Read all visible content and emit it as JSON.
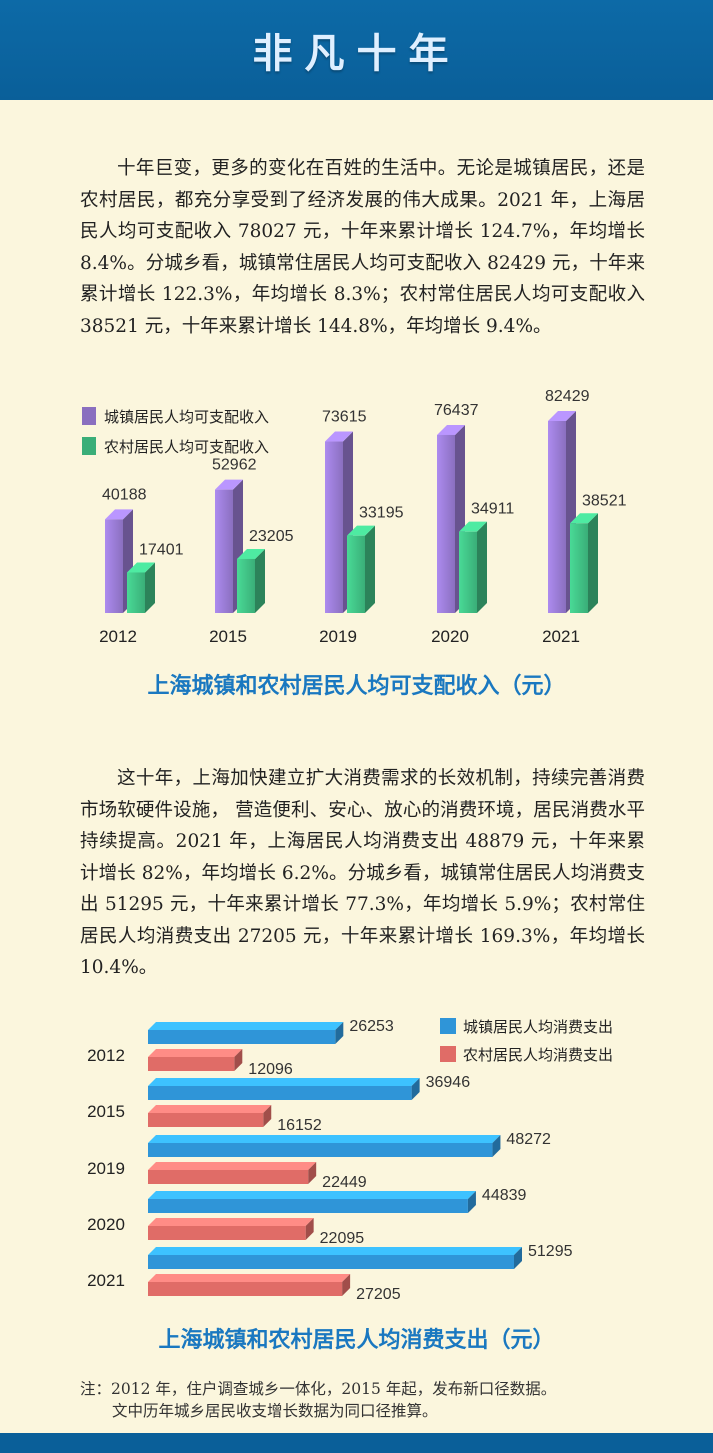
{
  "header": {
    "title": "非凡十年"
  },
  "paragraph1": "十年巨变，更多的变化在百姓的生活中。无论是城镇居民，还是农村居民，都充分享受到了经济发展的伟大成果。2021 年，上海居民人均可支配收入 78027 元，十年来累计增长 124.7%，年均增长 8.4%。分城乡看，城镇常住居民人均可支配收入 82429 元，十年来累计增长 122.3%，年均增长 8.3%；农村常住居民人均可支配收入 38521 元，十年来累计增长 144.8%，年均增长 9.4%。",
  "paragraph2": "这十年，上海加快建立扩大消费需求的长效机制，持续完善消费市场软硬件设施， 营造便利、安心、放心的消费环境，居民消费水平持续提高。2021 年，上海居民人均消费支出 48879 元，十年来累计增长 82%，年均增长 6.2%。分城乡看，城镇常住居民人均消费支出 51295 元，十年来累计增长 77.3%，年均增长 5.9%；农村常住居民人均消费支出 27205 元，十年来累计增长 169.3%，年均增长 10.4%。",
  "chart_data": [
    {
      "type": "bar",
      "title": "上海城镇和农村居民人均可支配收入（元）",
      "categories": [
        "2012",
        "2015",
        "2019",
        "2020",
        "2021"
      ],
      "series": [
        {
          "name": "城镇居民人均可支配收入",
          "values": [
            40188,
            52962,
            73615,
            76437,
            82429
          ]
        },
        {
          "name": "农村居民人均可支配收入",
          "values": [
            17401,
            23205,
            33195,
            34911,
            38521
          ]
        }
      ],
      "legend": "top-left",
      "colors": [
        "#8a6fbf",
        "#3aae78"
      ]
    },
    {
      "type": "bar",
      "orientation": "horizontal",
      "title": "上海城镇和农村居民人均消费支出（元）",
      "categories": [
        "2012",
        "2015",
        "2019",
        "2020",
        "2021"
      ],
      "series": [
        {
          "name": "城镇居民人均消费支出",
          "values": [
            26253,
            36946,
            48272,
            44839,
            51295
          ]
        },
        {
          "name": "农村居民人均消费支出",
          "values": [
            12096,
            16152,
            22449,
            22095,
            27205
          ]
        }
      ],
      "legend": "top-right",
      "colors": [
        "#2f95d8",
        "#e06c67"
      ]
    }
  ],
  "note": {
    "line1": "注：2012 年，住户调查城乡一体化，2015 年起，发布新口径数据。",
    "line2": "文中历年城乡居民收支增长数据为同口径推算。"
  }
}
